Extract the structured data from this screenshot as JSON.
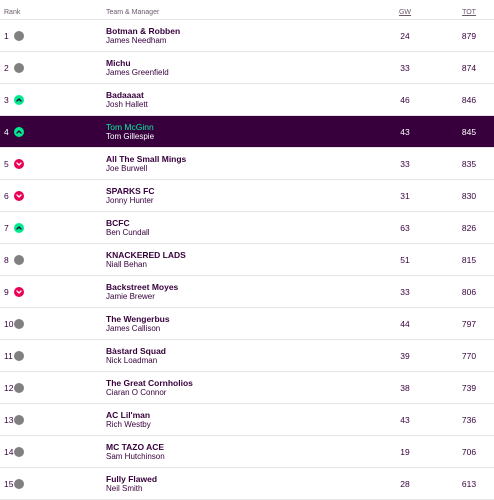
{
  "header": {
    "rank": "Rank",
    "team": "Team & Manager",
    "gw": "GW",
    "tot": "TOT"
  },
  "colors": {
    "same": "#808080",
    "up": "#01ea8e",
    "down": "#e90052",
    "highlight": "#37003c",
    "highlight_text": "#05f0a0"
  },
  "rows": [
    {
      "rank": "1",
      "movement": "same",
      "team": "Botman & Robben",
      "manager": "James Needham",
      "gw": "24",
      "tot": "879"
    },
    {
      "rank": "2",
      "movement": "same",
      "team": "Michu",
      "manager": "James Greenfield",
      "gw": "33",
      "tot": "874"
    },
    {
      "rank": "3",
      "movement": "up",
      "team": "Badaaaat",
      "manager": "Josh Hallett",
      "gw": "46",
      "tot": "846"
    },
    {
      "rank": "4",
      "movement": "up",
      "team": "Tom McGinn",
      "manager": "Tom Gillespie",
      "gw": "43",
      "tot": "845",
      "highlight": true
    },
    {
      "rank": "5",
      "movement": "down",
      "team": "All The Small Mings",
      "manager": "Joe Burwell",
      "gw": "33",
      "tot": "835"
    },
    {
      "rank": "6",
      "movement": "down",
      "team": "SPARKS FC",
      "manager": "Jonny Hunter",
      "gw": "31",
      "tot": "830"
    },
    {
      "rank": "7",
      "movement": "up",
      "team": "BCFC",
      "manager": "Ben Cundall",
      "gw": "63",
      "tot": "826"
    },
    {
      "rank": "8",
      "movement": "same",
      "team": "KNACKERED LADS",
      "manager": "Niall Behan",
      "gw": "51",
      "tot": "815"
    },
    {
      "rank": "9",
      "movement": "down",
      "team": "Backstreet Moyes",
      "manager": "Jamie Brewer",
      "gw": "33",
      "tot": "806"
    },
    {
      "rank": "10",
      "movement": "same",
      "team": "The Wengerbus",
      "manager": "James Callison",
      "gw": "44",
      "tot": "797"
    },
    {
      "rank": "11",
      "movement": "same",
      "team": "Bàstard Squad",
      "manager": "Nick Loadman",
      "gw": "39",
      "tot": "770"
    },
    {
      "rank": "12",
      "movement": "same",
      "team": "The Great Cornholios",
      "manager": "Ciaran O Connor",
      "gw": "38",
      "tot": "739"
    },
    {
      "rank": "13",
      "movement": "same",
      "team": "AC Lil'man",
      "manager": "Rich Westby",
      "gw": "43",
      "tot": "736"
    },
    {
      "rank": "14",
      "movement": "same",
      "team": "MC TAZO ACE",
      "manager": "Sam Hutchinson",
      "gw": "19",
      "tot": "706"
    },
    {
      "rank": "15",
      "movement": "same",
      "team": "Fully Flawed",
      "manager": "Neil Smith",
      "gw": "28",
      "tot": "613"
    }
  ]
}
